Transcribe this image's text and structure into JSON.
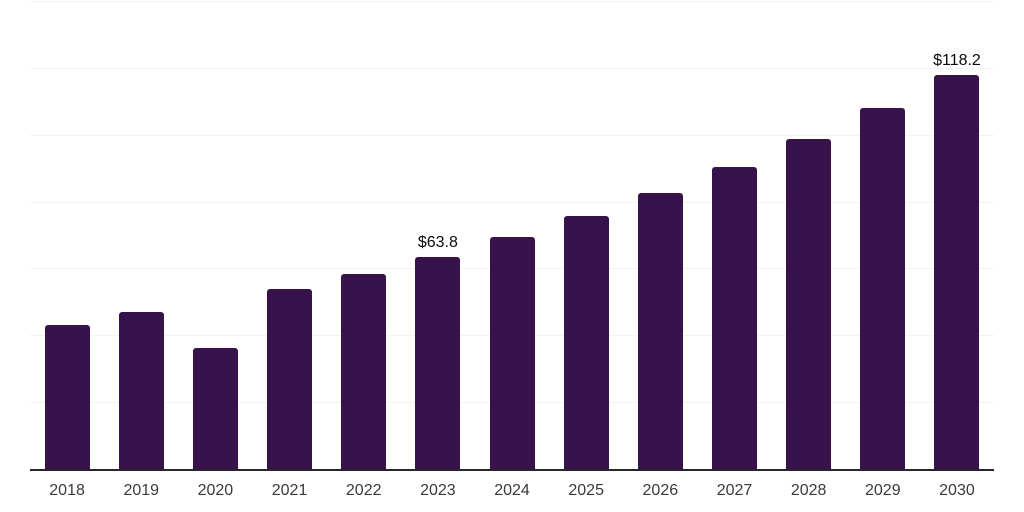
{
  "chart_data": {
    "type": "bar",
    "title": "",
    "xlabel": "",
    "ylabel": "",
    "legend": "none",
    "grid": "horizontal",
    "categories": [
      "2018",
      "2019",
      "2020",
      "2021",
      "2022",
      "2023",
      "2024",
      "2025",
      "2026",
      "2027",
      "2028",
      "2029",
      "2030"
    ],
    "values": [
      43.4,
      47.2,
      36.5,
      54.1,
      58.6,
      63.8,
      69.7,
      76.0,
      83.0,
      90.6,
      99.1,
      108.3,
      118.2
    ],
    "bar_labels": [
      "",
      "",
      "",
      "",
      "",
      "$63.8",
      "",
      "",
      "",
      "",
      "",
      "",
      "$118.2"
    ],
    "ylim": [
      0,
      140
    ],
    "grid_step": 20,
    "colors": {
      "bar": "#37124B",
      "gridline": "#F2F2F2",
      "axis_line": "#26262B",
      "tick_label": "#3A3A3A",
      "value_label": "#0A0A0A",
      "background": "#FFFFFF"
    }
  }
}
